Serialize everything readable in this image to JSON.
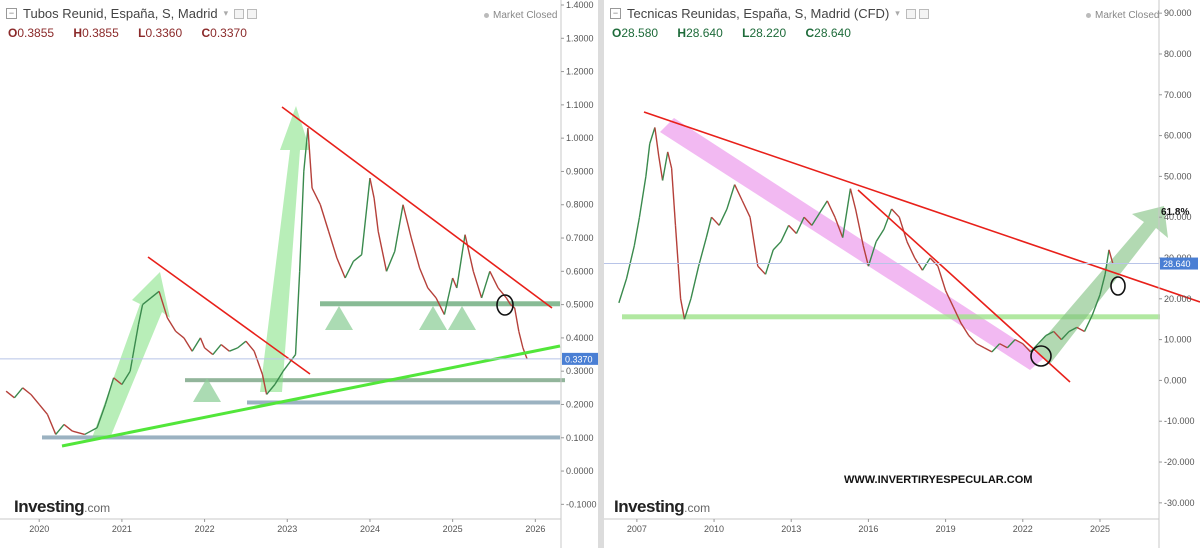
{
  "left": {
    "title": "Tubos Reunid, España, S, Madrid",
    "market_status": "Market Closed",
    "ohlc": [
      {
        "key": "O",
        "value": "0.3855"
      },
      {
        "key": "H",
        "value": "0.3855"
      },
      {
        "key": "L",
        "value": "0.3360"
      },
      {
        "key": "C",
        "value": "0.3370"
      }
    ],
    "price_label": "0.3370",
    "logo_text": "Investing",
    "logo_suffix": ".com",
    "ohlc_color": "#8b2a2a",
    "price_color": "#4a7fd4"
  },
  "right": {
    "title": "Tecnicas Reunidas, España, S, Madrid (CFD)",
    "market_status": "Market Closed",
    "ohlc": [
      {
        "key": "O",
        "value": "28.580"
      },
      {
        "key": "H",
        "value": "28.640"
      },
      {
        "key": "L",
        "value": "28.220"
      },
      {
        "key": "C",
        "value": "28.640"
      }
    ],
    "price_label": "28.640",
    "fib_label": "61.8%",
    "logo_text": "Investing",
    "logo_suffix": ".com",
    "watermark": "WWW.INVERTIRYESPECULAR.COM",
    "ohlc_color": "#1e6b3a",
    "price_color": "#4a7fd4"
  },
  "chart_data": [
    {
      "type": "line",
      "title": "Tubos Reunid, España, S, Madrid",
      "x_ticks": [
        "2020",
        "2021",
        "2022",
        "2023",
        "2024",
        "2025",
        "2026"
      ],
      "y_ticks": [
        "1.4000",
        "1.3000",
        "1.2000",
        "1.1000",
        "1.0000",
        "0.9000",
        "0.8000",
        "0.7000",
        "0.6000",
        "0.5000",
        "0.4000",
        "0.3000",
        "0.2000",
        "0.1000",
        "0.0000",
        "-0.1000"
      ],
      "ylim": [
        -0.12,
        1.4
      ],
      "xlim": [
        2019.55,
        2026.25
      ],
      "series": [
        {
          "values": [
            [
              2019.6,
              0.24
            ],
            [
              2019.7,
              0.22
            ],
            [
              2019.8,
              0.25
            ],
            [
              2019.9,
              0.23
            ],
            [
              2020.0,
              0.2
            ],
            [
              2020.1,
              0.17
            ],
            [
              2020.2,
              0.11
            ],
            [
              2020.3,
              0.14
            ],
            [
              2020.4,
              0.12
            ],
            [
              2020.55,
              0.11
            ],
            [
              2020.7,
              0.13
            ],
            [
              2020.8,
              0.2
            ],
            [
              2020.9,
              0.28
            ],
            [
              2021.0,
              0.26
            ],
            [
              2021.1,
              0.3
            ],
            [
              2021.2,
              0.44
            ],
            [
              2021.25,
              0.5
            ],
            [
              2021.35,
              0.52
            ],
            [
              2021.45,
              0.54
            ],
            [
              2021.55,
              0.46
            ],
            [
              2021.65,
              0.42
            ],
            [
              2021.75,
              0.4
            ],
            [
              2021.85,
              0.36
            ],
            [
              2021.95,
              0.4
            ],
            [
              2022.0,
              0.37
            ],
            [
              2022.1,
              0.35
            ],
            [
              2022.2,
              0.38
            ],
            [
              2022.3,
              0.36
            ],
            [
              2022.4,
              0.37
            ],
            [
              2022.5,
              0.39
            ],
            [
              2022.6,
              0.36
            ],
            [
              2022.7,
              0.29
            ],
            [
              2022.75,
              0.23
            ],
            [
              2022.85,
              0.26
            ],
            [
              2022.95,
              0.3
            ],
            [
              2023.1,
              0.35
            ],
            [
              2023.15,
              0.6
            ],
            [
              2023.2,
              0.9
            ],
            [
              2023.25,
              1.03
            ],
            [
              2023.3,
              0.85
            ],
            [
              2023.4,
              0.8
            ],
            [
              2023.5,
              0.72
            ],
            [
              2023.6,
              0.64
            ],
            [
              2023.7,
              0.58
            ],
            [
              2023.8,
              0.63
            ],
            [
              2023.9,
              0.65
            ],
            [
              2024.0,
              0.88
            ],
            [
              2024.05,
              0.82
            ],
            [
              2024.1,
              0.72
            ],
            [
              2024.2,
              0.6
            ],
            [
              2024.3,
              0.66
            ],
            [
              2024.4,
              0.8
            ],
            [
              2024.5,
              0.7
            ],
            [
              2024.6,
              0.61
            ],
            [
              2024.7,
              0.55
            ],
            [
              2024.8,
              0.52
            ],
            [
              2024.9,
              0.47
            ],
            [
              2025.0,
              0.58
            ],
            [
              2025.05,
              0.55
            ],
            [
              2025.15,
              0.71
            ],
            [
              2025.25,
              0.6
            ],
            [
              2025.35,
              0.52
            ],
            [
              2025.45,
              0.6
            ],
            [
              2025.55,
              0.55
            ],
            [
              2025.65,
              0.52
            ],
            [
              2025.7,
              0.5
            ],
            [
              2025.75,
              0.49
            ],
            [
              2025.8,
              0.42
            ],
            [
              2025.85,
              0.37
            ],
            [
              2025.9,
              0.337
            ]
          ]
        }
      ]
    },
    {
      "type": "line",
      "title": "Tecnicas Reunidas, España, S, Madrid (CFD)",
      "x_ticks": [
        "2007",
        "2010",
        "2013",
        "2016",
        "2019",
        "2022",
        "2025"
      ],
      "y_ticks": [
        "90.000",
        "80.000",
        "70.000",
        "60.000",
        "50.000",
        "40.000",
        "30.000",
        "20.000",
        "10.000",
        "0.000",
        "-10.000",
        "-20.000",
        "-30.000"
      ],
      "ylim": [
        -32,
        92
      ],
      "xlim": [
        2005.8,
        2027.1
      ],
      "series": [
        {
          "values": [
            [
              2006.3,
              19
            ],
            [
              2006.6,
              25
            ],
            [
              2006.9,
              33
            ],
            [
              2007.1,
              40
            ],
            [
              2007.35,
              50
            ],
            [
              2007.5,
              58
            ],
            [
              2007.7,
              62
            ],
            [
              2007.85,
              55
            ],
            [
              2008.0,
              49
            ],
            [
              2008.2,
              56
            ],
            [
              2008.35,
              52
            ],
            [
              2008.5,
              38
            ],
            [
              2008.7,
              20
            ],
            [
              2008.85,
              15
            ],
            [
              2009.1,
              20
            ],
            [
              2009.4,
              28
            ],
            [
              2009.7,
              35
            ],
            [
              2009.9,
              40
            ],
            [
              2010.2,
              38
            ],
            [
              2010.5,
              42
            ],
            [
              2010.8,
              48
            ],
            [
              2011.1,
              44
            ],
            [
              2011.4,
              40
            ],
            [
              2011.7,
              28
            ],
            [
              2012.0,
              26
            ],
            [
              2012.3,
              32
            ],
            [
              2012.6,
              34
            ],
            [
              2012.9,
              38
            ],
            [
              2013.2,
              36
            ],
            [
              2013.5,
              40
            ],
            [
              2013.8,
              38
            ],
            [
              2014.1,
              41
            ],
            [
              2014.4,
              44
            ],
            [
              2014.7,
              40
            ],
            [
              2015.0,
              35
            ],
            [
              2015.3,
              47
            ],
            [
              2015.5,
              42
            ],
            [
              2015.8,
              33
            ],
            [
              2016.0,
              28
            ],
            [
              2016.3,
              34
            ],
            [
              2016.6,
              37
            ],
            [
              2016.9,
              42
            ],
            [
              2017.2,
              40
            ],
            [
              2017.5,
              34
            ],
            [
              2017.8,
              30
            ],
            [
              2018.1,
              27
            ],
            [
              2018.4,
              30
            ],
            [
              2018.7,
              28
            ],
            [
              2019.0,
              22
            ],
            [
              2019.3,
              18
            ],
            [
              2019.6,
              14
            ],
            [
              2019.9,
              11
            ],
            [
              2020.2,
              9
            ],
            [
              2020.5,
              8
            ],
            [
              2020.8,
              7
            ],
            [
              2021.1,
              9
            ],
            [
              2021.4,
              8
            ],
            [
              2021.7,
              10
            ],
            [
              2022.0,
              9
            ],
            [
              2022.3,
              7
            ],
            [
              2022.6,
              9
            ],
            [
              2022.9,
              11
            ],
            [
              2023.2,
              12
            ],
            [
              2023.5,
              10
            ],
            [
              2023.8,
              12
            ],
            [
              2024.1,
              13
            ],
            [
              2024.4,
              12
            ],
            [
              2024.7,
              16
            ],
            [
              2025.0,
              21
            ],
            [
              2025.2,
              26
            ],
            [
              2025.35,
              32
            ],
            [
              2025.5,
              28.64
            ]
          ]
        }
      ]
    }
  ]
}
